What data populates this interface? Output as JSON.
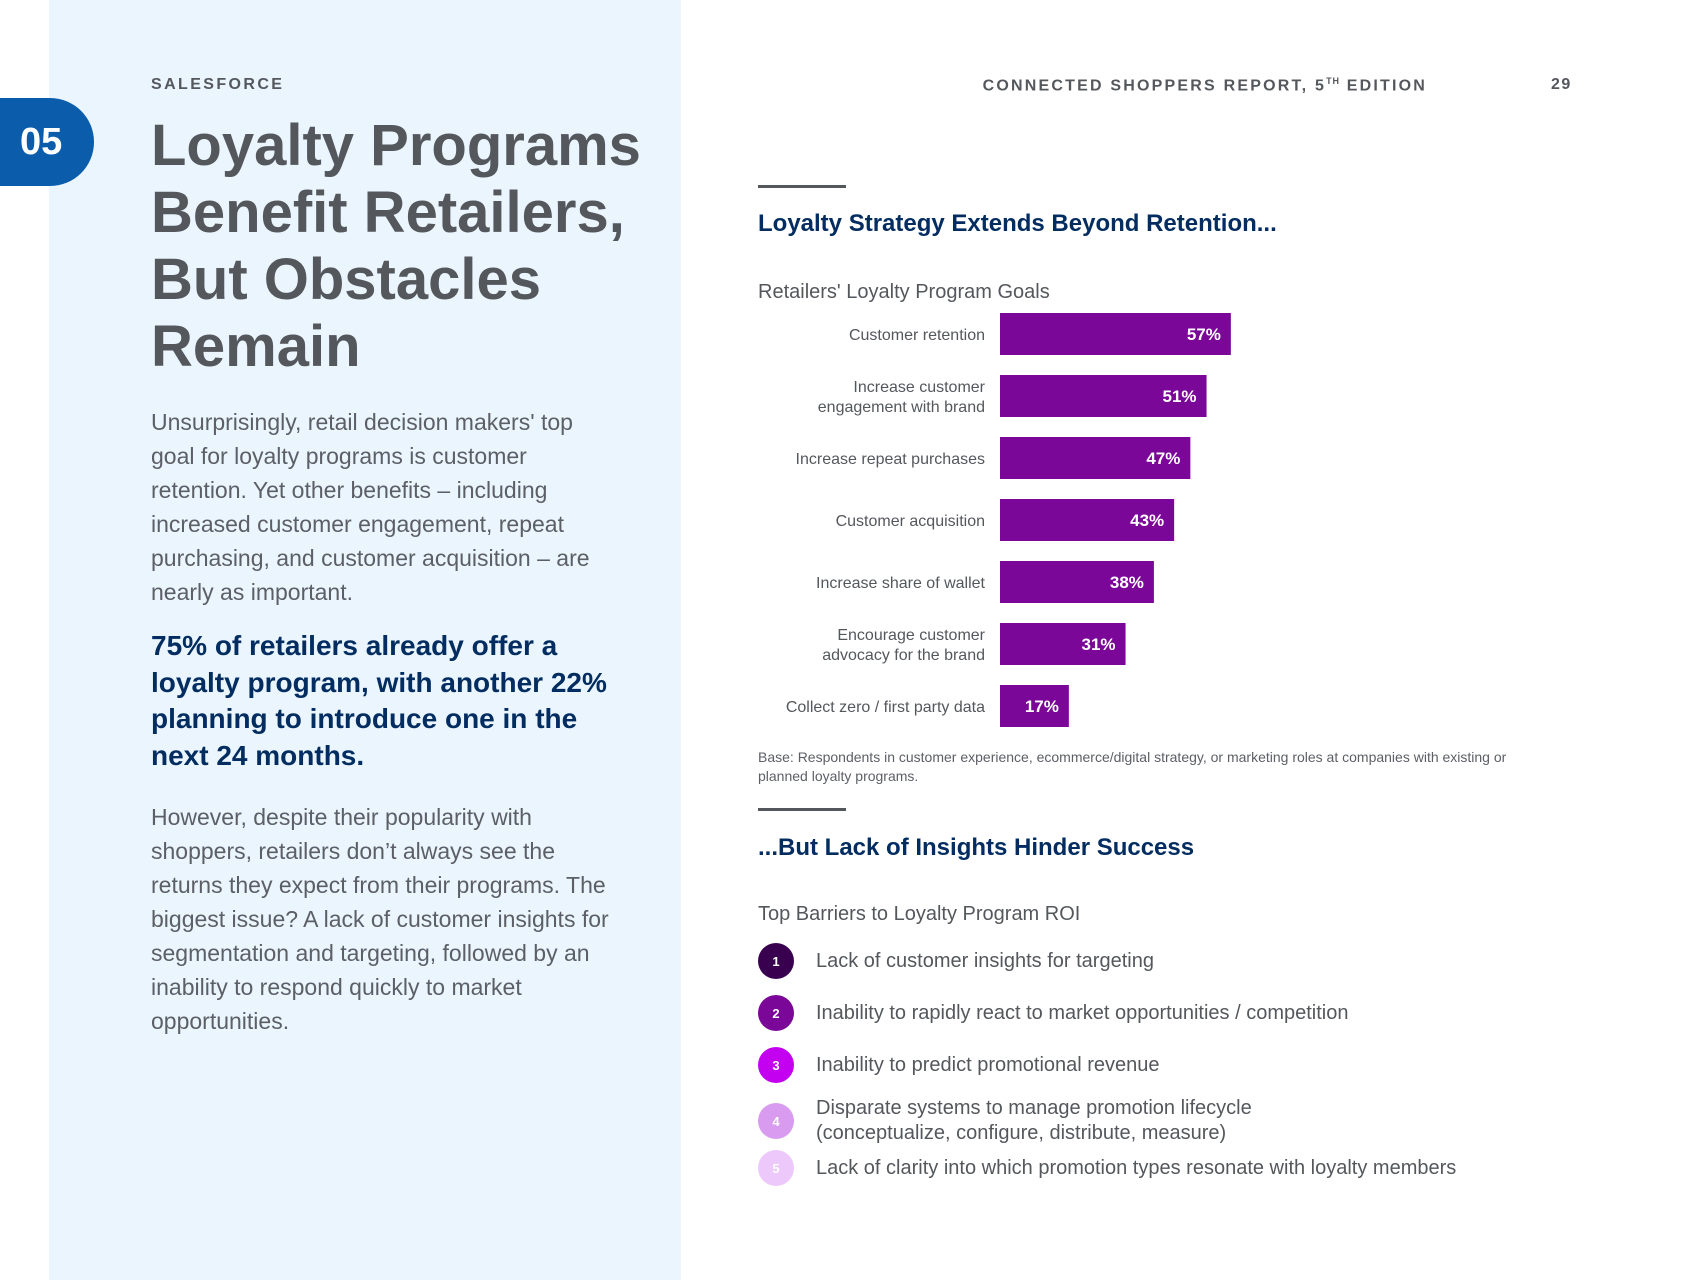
{
  "left": {
    "brand": "SALESFORCE",
    "section_number": "05",
    "title": "Loyalty Programs Benefit Retailers, But Obstacles Remain",
    "intro": "Unsurprisingly, retail decision makers' top goal for loyalty programs is customer retention. Yet other benefits – including increased customer engagement, repeat purchasing, and customer acquisition – are nearly as important.",
    "highlight": "75% of retailers already offer a loyalty program, with another 22% planning to introduce one in the next 24 months.",
    "closing": "However, despite their popularity with shoppers, retailers don’t always see the returns they expect from their programs. The biggest issue? A lack of customer insights for segmentation and targeting, followed by an inability to respond quickly to market opportunities."
  },
  "header": {
    "report_title": "CONNECTED SHOPPERS REPORT, 5",
    "report_title_sup": "TH",
    "report_title_suffix": " EDITION",
    "page_number": "29"
  },
  "section1": {
    "heading": "Loyalty Strategy Extends Beyond Retention...",
    "chart_title": "Retailers' Loyalty Program Goals",
    "base_note": "Base: Respondents in customer experience, ecommerce/digital strategy, or marketing roles at companies with existing or planned loyalty programs."
  },
  "chart_data": {
    "type": "bar",
    "orientation": "horizontal",
    "categories": [
      "Customer retention",
      "Increase customer\nengagement with brand",
      "Increase repeat purchases",
      "Customer acquisition",
      "Increase share of wallet",
      "Encourage customer\nadvocacy for the brand",
      "Collect zero / first party data"
    ],
    "values": [
      57,
      51,
      47,
      43,
      38,
      31,
      17
    ],
    "value_labels": [
      "57%",
      "51%",
      "47%",
      "43%",
      "38%",
      "31%",
      "17%"
    ],
    "bar_color": "#7b0798",
    "label_color": "#ffffff"
  },
  "section2": {
    "heading": "...But Lack of Insights Hinder Success",
    "list_title": "Top Barriers to Loyalty Program ROI",
    "barriers": [
      {
        "num": "1",
        "text": "Lack of customer insights for targeting",
        "color": "#3a0050"
      },
      {
        "num": "2",
        "text": "Inability to rapidly react to market opportunities / competition",
        "color": "#7b0798"
      },
      {
        "num": "3",
        "text": "Inability to predict promotional revenue",
        "color": "#c400f0"
      },
      {
        "num": "4",
        "text": "Disparate systems to manage promotion lifecycle\n(conceptualize, configure, distribute, measure)",
        "color": "#d89bf0"
      },
      {
        "num": "5",
        "text": "Lack of clarity into which promotion types resonate with loyalty members",
        "color": "#ecc8fb"
      }
    ]
  },
  "colors": {
    "accent_blue": "#0b5cab",
    "navy": "#032d60",
    "panel_bg": "#eaf5fe"
  }
}
